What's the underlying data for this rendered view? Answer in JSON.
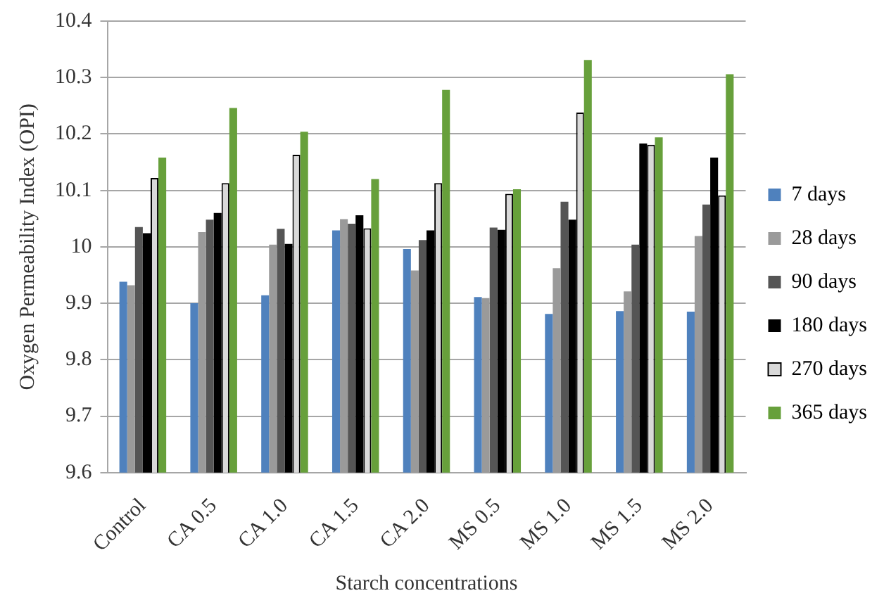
{
  "chart_data": {
    "type": "bar",
    "xlabel": "Starch concentrations",
    "ylabel": "Oxygen Permeability Index (OPI)",
    "categories": [
      "Control",
      "CA 0.5",
      "CA 1.0",
      "CA 1.5",
      "CA 2.0",
      "MS 0.5",
      "MS 1.0",
      "MS 1.5",
      "MS 2.0"
    ],
    "series": [
      {
        "name": "7 days",
        "color": "#4f81bd",
        "values": [
          9.938,
          9.9,
          9.914,
          10.029,
          9.996,
          9.911,
          9.881,
          9.886,
          9.885
        ]
      },
      {
        "name": "28 days",
        "color": "#9a9a9a",
        "values": [
          9.932,
          10.026,
          10.004,
          10.049,
          9.958,
          9.909,
          9.962,
          9.921,
          10.019
        ]
      },
      {
        "name": "90 days",
        "color": "#555555",
        "values": [
          10.035,
          10.048,
          10.032,
          10.041,
          10.012,
          10.034,
          10.08,
          10.004,
          10.075
        ]
      },
      {
        "name": "180 days",
        "color": "#000000",
        "values": [
          10.024,
          10.06,
          10.005,
          10.056,
          10.029,
          10.03,
          10.048,
          10.183,
          10.158
        ]
      },
      {
        "name": "270 days",
        "color": "#d9d9d9",
        "values": [
          10.122,
          10.113,
          10.163,
          10.033,
          10.113,
          10.094,
          10.238,
          10.181,
          10.091
        ]
      },
      {
        "name": "365 days",
        "color": "#67a03b",
        "values": [
          10.158,
          10.246,
          10.204,
          10.12,
          10.278,
          10.102,
          10.331,
          10.194,
          10.306
        ]
      }
    ],
    "ylim": [
      9.6,
      10.4
    ],
    "yticks": [
      9.6,
      9.7,
      9.8,
      9.9,
      10,
      10.1,
      10.2,
      10.3,
      10.4
    ],
    "grid": "y",
    "legend": "right"
  }
}
